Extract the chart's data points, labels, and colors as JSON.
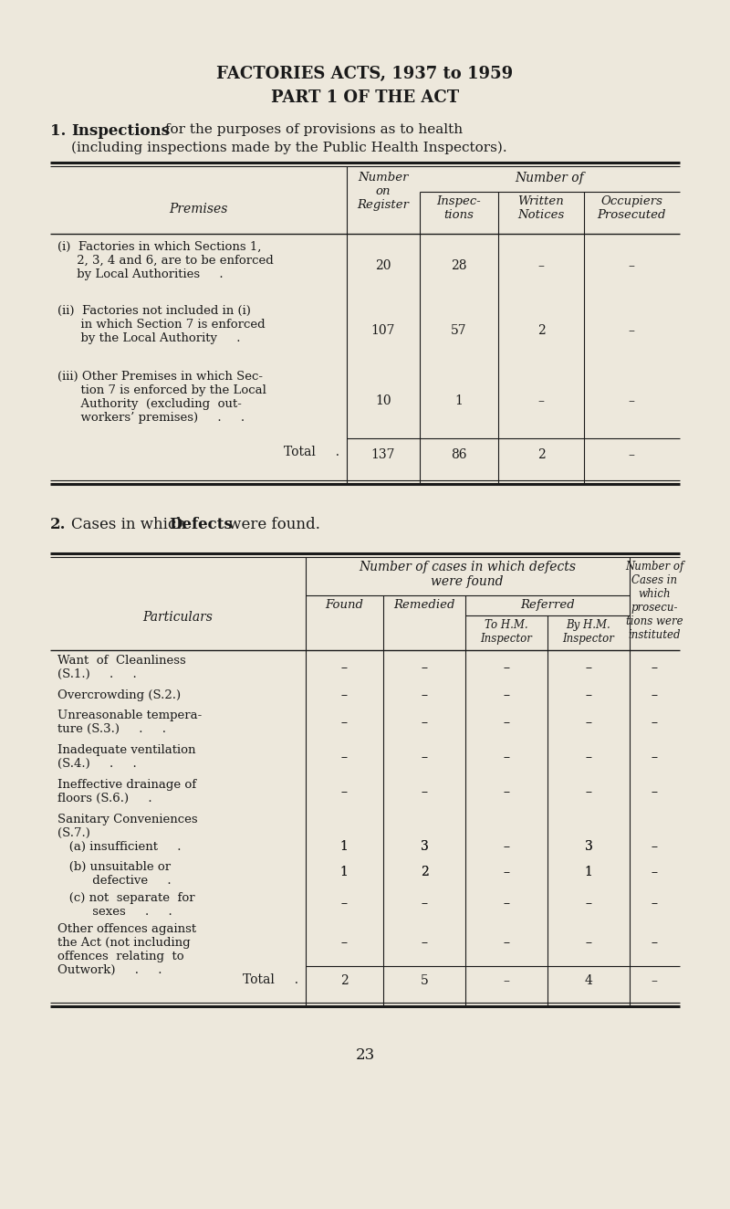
{
  "bg_color": "#ede8dc",
  "title1": "FACTORIES ACTS, 1937 to 1959",
  "title2": "PART 1 OF THE ACT",
  "page_number": "23",
  "t1_rows": [
    {
      "label": "(i)  Factories in which Sections 1,\n     2, 3, 4 and 6, are to be enforced\n     by Local Authorities     .",
      "v1": "20",
      "v2": "28",
      "v3": "–",
      "v4": "–"
    },
    {
      "label": "(ii)  Factories not included in (i)\n      in which Section 7 is enforced\n      by the Local Authority     .",
      "v1": "107",
      "v2": "57",
      "v3": "2",
      "v4": "–"
    },
    {
      "label": "(iii) Other Premises in which Sec-\n      tion 7 is enforced by the Local\n      Authority  (excluding  out-\n      workers’ premises)     .     .",
      "v1": "10",
      "v2": "1",
      "v3": "–",
      "v4": "–"
    },
    {
      "label": "Total     .",
      "v1": "137",
      "v2": "86",
      "v3": "2",
      "v4": "–",
      "is_total": true
    }
  ],
  "t2_rows": [
    {
      "label": "Want  of  Cleanliness\n(S.1.)     .     .",
      "c1": "–",
      "c2": "–",
      "c3": "–",
      "c4": "–",
      "c5": "–"
    },
    {
      "label": "Overcrowding (S.2.)",
      "c1": "–",
      "c2": "–",
      "c3": "–",
      "c4": "–",
      "c5": "–"
    },
    {
      "label": "Unreasonable tempera-\nture (S.3.)     .     .",
      "c1": "–",
      "c2": "–",
      "c3": "–",
      "c4": "–",
      "c5": "–"
    },
    {
      "label": "Inadequate ventilation\n(S.4.)     .     .",
      "c1": "–",
      "c2": "–",
      "c3": "–",
      "c4": "–",
      "c5": "–"
    },
    {
      "label": "Ineffective drainage of\nfloors (S.6.)     .",
      "c1": "–",
      "c2": "–",
      "c3": "–",
      "c4": "–",
      "c5": "–"
    },
    {
      "label": "Sanitary Conveniences\n(S.7.)",
      "c1": "",
      "c2": "",
      "c3": "",
      "c4": "",
      "c5": ""
    },
    {
      "label": "   (a) insufficient     .",
      "c1": "1",
      "c2": "3",
      "c3": "–",
      "c4": "3",
      "c5": "–"
    },
    {
      "label": "   (b) unsuitable or\n         defective     .",
      "c1": "1",
      "c2": "2",
      "c3": "–",
      "c4": "1",
      "c5": "–"
    },
    {
      "label": "   (c) not  separate  for\n         sexes     .     .",
      "c1": "–",
      "c2": "–",
      "c3": "–",
      "c4": "–",
      "c5": "–"
    },
    {
      "label": "Other offences against\nthe Act (not including\noffences  relating  to\nOutwork)     .     .",
      "c1": "–",
      "c2": "–",
      "c3": "–",
      "c4": "–",
      "c5": "–"
    },
    {
      "label": "Total     .",
      "c1": "2",
      "c2": "5",
      "c3": "–",
      "c4": "4",
      "c5": "–",
      "is_total": true
    }
  ]
}
